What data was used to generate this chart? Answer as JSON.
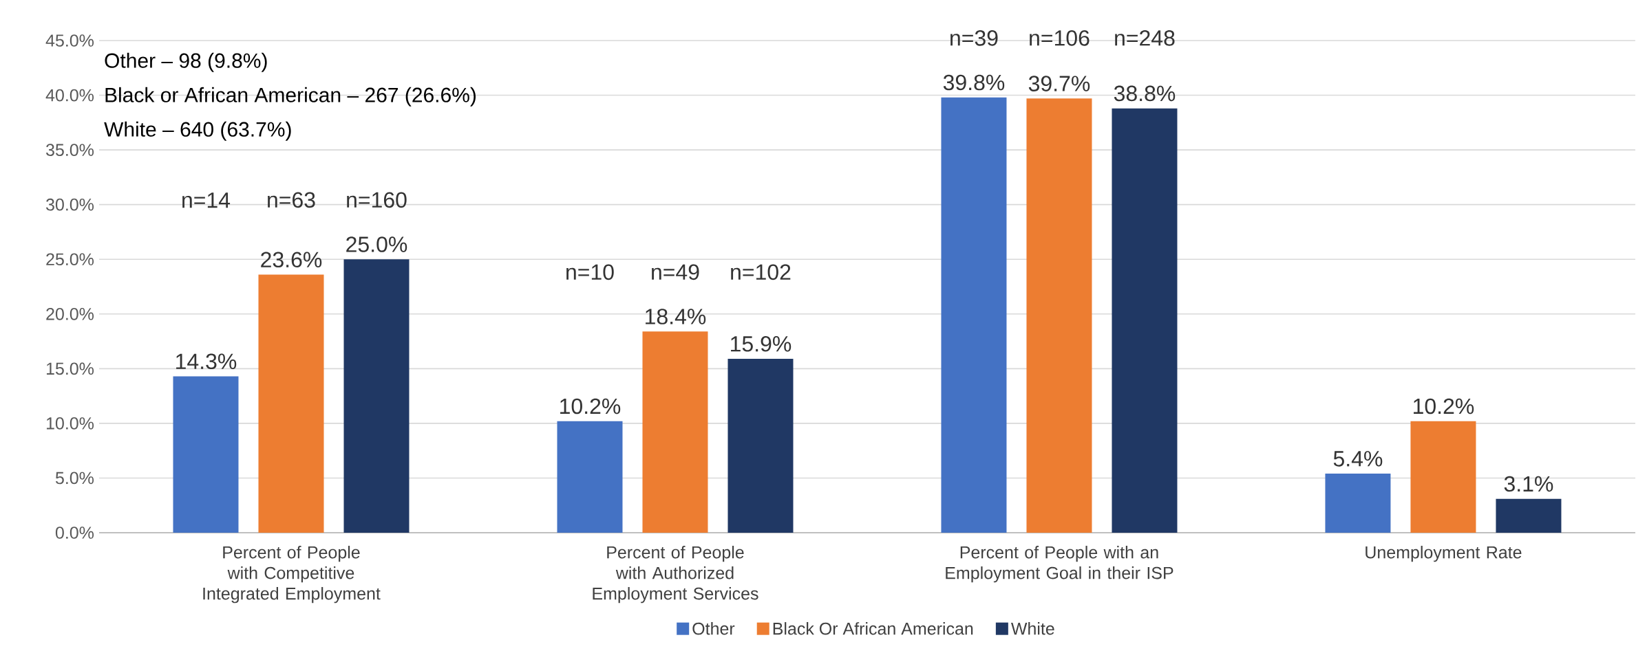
{
  "chart_data": {
    "type": "bar",
    "categories": [
      "Percent of People with Competitive Integrated Employment",
      "Percent of People with Authorized Employment Services",
      "Percent of People with an Employment Goal in their ISP",
      "Unemployment Rate"
    ],
    "series": [
      {
        "name": "Other",
        "color": "#4472c4",
        "values": [
          14.3,
          10.2,
          39.8,
          5.4
        ],
        "value_labels": [
          "14.3%",
          "10.2%",
          "39.8%",
          "5.4%"
        ]
      },
      {
        "name": "Black Or African American",
        "color": "#ed7d31",
        "values": [
          23.6,
          18.4,
          39.7,
          10.2
        ],
        "value_labels": [
          "23.6%",
          "18.4%",
          "39.7%",
          "10.2%"
        ]
      },
      {
        "name": "White",
        "color": "#203864",
        "values": [
          25.0,
          15.9,
          38.8,
          3.1
        ],
        "value_labels": [
          "25.0%",
          "15.9%",
          "38.8%",
          "3.1%"
        ]
      }
    ],
    "ylim": [
      0,
      45
    ],
    "yticks": [
      {
        "value": 0,
        "label": "0.0%"
      },
      {
        "value": 5,
        "label": "5.0%"
      },
      {
        "value": 10,
        "label": "10.0%"
      },
      {
        "value": 15,
        "label": "15.0%"
      },
      {
        "value": 20,
        "label": "20.0%"
      },
      {
        "value": 25,
        "label": "25.0%"
      },
      {
        "value": 30,
        "label": "30.0%"
      },
      {
        "value": 35,
        "label": "35.0%"
      },
      {
        "value": 40,
        "label": "40.0%"
      },
      {
        "value": 45,
        "label": "45.0%"
      }
    ],
    "grid": "y",
    "legend": "bottom",
    "annotations": [
      "Other – 98 (9.8%)",
      "Black or African American – 267 (26.6%)",
      "White – 640 (63.7%)",
      "n=14",
      "n=63",
      "n=160",
      "n=10",
      "n=49",
      "n=102",
      "n=39",
      "n=106",
      "n=248"
    ]
  }
}
